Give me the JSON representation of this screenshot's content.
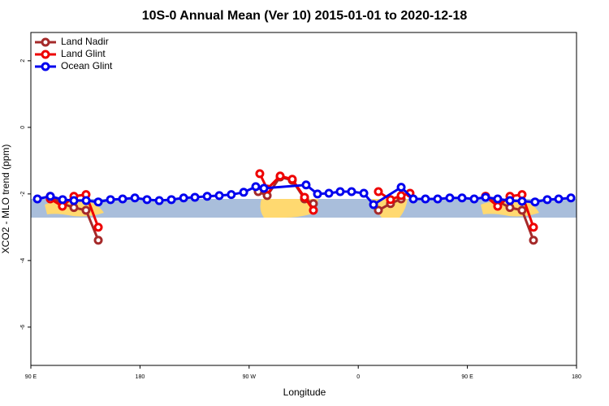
{
  "chart_data": {
    "type": "line",
    "title": "10S-0 Annual Mean (Ver 10)   2015-01-01 to 2020-12-18",
    "x_label": "Longitude",
    "y_label": "XCO2 - MLO trend (ppm)",
    "xlim": [
      90,
      540
    ],
    "ylim": [
      -7.15,
      2.85
    ],
    "xticks": [
      {
        "value": 90,
        "label": "90 E"
      },
      180,
      {
        "value": 270,
        "label": "90 W"
      },
      {
        "value": 360,
        "label": "0"
      },
      {
        "value": 450,
        "label": "90 E"
      },
      {
        "value": 540,
        "label": "180"
      }
    ],
    "yticks": [
      -6,
      -4,
      -2,
      0,
      2
    ],
    "legend": "top-left",
    "series": [
      {
        "name": "Land Nadir",
        "color": "#a52a2a",
        "x": [
          106,
          116,
          125.5,
          135.5,
          145.6,
          null,
          277.5,
          284.9,
          295.6,
          305.6,
          315.7,
          323,
          null,
          376.6,
          386.6,
          395.4,
          null,
          465,
          475,
          485.1,
          495.1,
          504.5
        ],
        "values": [
          -2.07,
          -2.29,
          -2.41,
          -2.49,
          -3.39,
          null,
          -1.93,
          -2.05,
          -1.49,
          -1.59,
          -2.15,
          -2.29,
          null,
          -2.49,
          -2.29,
          -2.15,
          null,
          -2.07,
          -2.22,
          -2.41,
          -2.49,
          -3.39
        ]
      },
      {
        "name": "Land Glint",
        "color": "#ee0000",
        "x": [
          106,
          116,
          125.5,
          135.5,
          145.6,
          null,
          278.8,
          284.9,
          295.6,
          305.6,
          315.7,
          323,
          null,
          376.6,
          386.6,
          395.4,
          402.7,
          null,
          465,
          475,
          485.1,
          495.1,
          504.5
        ],
        "values": [
          -2.15,
          -2.37,
          -2.07,
          -2.02,
          -3.0,
          null,
          -1.39,
          -1.85,
          -1.46,
          -1.56,
          -2.1,
          -2.49,
          null,
          -1.93,
          -2.17,
          -2.05,
          -1.98,
          null,
          -2.07,
          -2.37,
          -2.07,
          -2.02,
          -3.0
        ]
      },
      {
        "name": "Ocean Glint",
        "color": "#0000ee",
        "x": [
          95.4,
          106.1,
          116.2,
          125.5,
          135.6,
          145.6,
          155.7,
          165.7,
          175.8,
          185.8,
          195.9,
          205.9,
          216,
          225.3,
          235.4,
          245.4,
          255.3,
          265.5,
          275.5,
          282.2,
          317,
          326.4,
          335.8,
          345.1,
          354.5,
          364.6,
          372.6,
          395.4,
          405.4,
          415.4,
          425.5,
          435.5,
          445.6,
          455.6,
          465,
          475,
          485.1,
          495.1,
          505.8,
          515.9,
          525.3,
          535.4
        ],
        "values": [
          -2.15,
          -2.07,
          -2.17,
          -2.2,
          -2.2,
          -2.24,
          -2.17,
          -2.15,
          -2.12,
          -2.17,
          -2.2,
          -2.17,
          -2.12,
          -2.1,
          -2.07,
          -2.05,
          -2.02,
          -1.95,
          -1.78,
          -1.83,
          -1.73,
          -2.0,
          -1.98,
          -1.93,
          -1.93,
          -1.98,
          -2.32,
          -1.8,
          -2.15,
          -2.15,
          -2.15,
          -2.12,
          -2.12,
          -2.15,
          -2.1,
          -2.15,
          -2.2,
          -2.22,
          -2.24,
          -2.17,
          -2.15,
          -2.12
        ]
      }
    ]
  }
}
